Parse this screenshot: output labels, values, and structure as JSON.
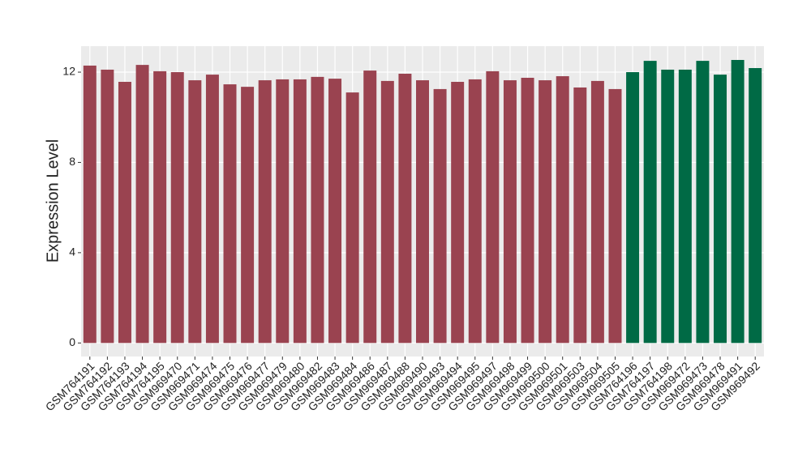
{
  "chart_data": {
    "type": "bar",
    "ylabel": "Expression Level",
    "categories": [
      "GSM764191",
      "GSM764192",
      "GSM764193",
      "GSM764194",
      "GSM764195",
      "GSM969470",
      "GSM969471",
      "GSM969474",
      "GSM969475",
      "GSM969476",
      "GSM969477",
      "GSM969479",
      "GSM969480",
      "GSM969482",
      "GSM969483",
      "GSM969484",
      "GSM969486",
      "GSM969487",
      "GSM969488",
      "GSM969490",
      "GSM969493",
      "GSM969494",
      "GSM969495",
      "GSM969497",
      "GSM969498",
      "GSM969499",
      "GSM969500",
      "GSM969501",
      "GSM969503",
      "GSM969504",
      "GSM969505",
      "GSM764196",
      "GSM764197",
      "GSM764198",
      "GSM969472",
      "GSM969473",
      "GSM969478",
      "GSM969491",
      "GSM969492"
    ],
    "values": [
      12.29,
      12.11,
      11.57,
      12.32,
      12.04,
      12.0,
      11.64,
      11.89,
      11.46,
      11.35,
      11.64,
      11.68,
      11.68,
      11.79,
      11.71,
      11.1,
      12.07,
      11.61,
      11.93,
      11.64,
      11.25,
      11.57,
      11.68,
      12.04,
      11.64,
      11.75,
      11.64,
      11.82,
      11.32,
      11.61,
      11.25,
      12.0,
      12.5,
      12.11,
      12.11,
      12.5,
      11.89,
      12.54,
      12.18
    ],
    "colors": [
      "#9a4350",
      "#9a4350",
      "#9a4350",
      "#9a4350",
      "#9a4350",
      "#9a4350",
      "#9a4350",
      "#9a4350",
      "#9a4350",
      "#9a4350",
      "#9a4350",
      "#9a4350",
      "#9a4350",
      "#9a4350",
      "#9a4350",
      "#9a4350",
      "#9a4350",
      "#9a4350",
      "#9a4350",
      "#9a4350",
      "#9a4350",
      "#9a4350",
      "#9a4350",
      "#9a4350",
      "#9a4350",
      "#9a4350",
      "#9a4350",
      "#9a4350",
      "#9a4350",
      "#9a4350",
      "#9a4350",
      "#006a45",
      "#006a45",
      "#006a45",
      "#006a45",
      "#006a45",
      "#006a45",
      "#006a45",
      "#006a45"
    ],
    "ylim": [
      -0.6,
      13.15
    ],
    "yticks": [
      0,
      4,
      8,
      12
    ],
    "grid": true
  }
}
